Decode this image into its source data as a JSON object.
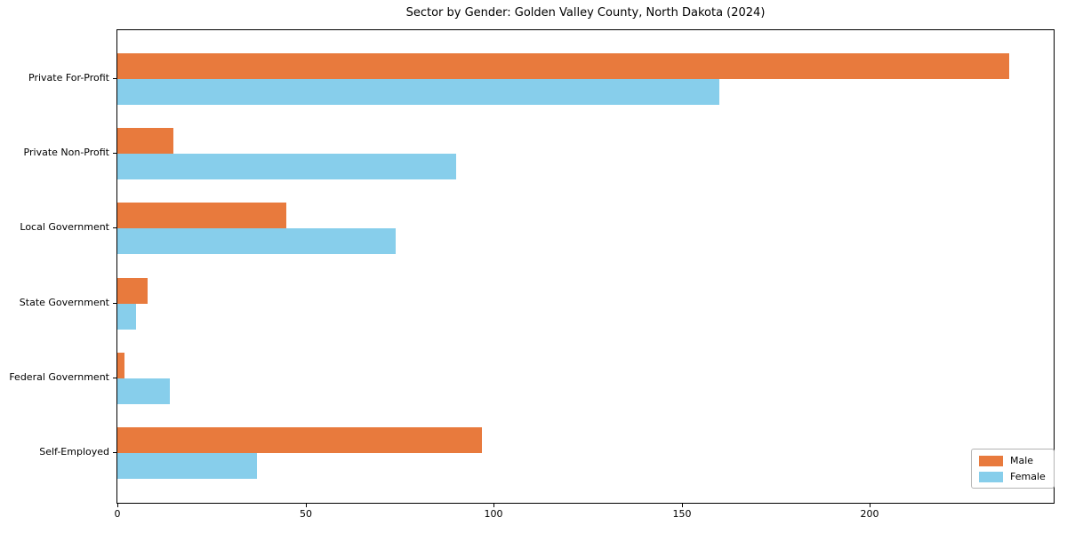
{
  "chart_data": {
    "type": "bar",
    "orientation": "horizontal",
    "title": "Sector by Gender: Golden Valley County, North Dakota (2024)",
    "categories": [
      "Private For-Profit",
      "Private Non-Profit",
      "Local Government",
      "State Government",
      "Federal Government",
      "Self-Employed"
    ],
    "series": [
      {
        "name": "Male",
        "color": "#e87a3d",
        "values": [
          237,
          15,
          45,
          8,
          2,
          97
        ]
      },
      {
        "name": "Female",
        "color": "#87ceeb",
        "values": [
          160,
          90,
          74,
          5,
          14,
          37
        ]
      }
    ],
    "xlabel": "",
    "ylabel": "",
    "xlim": [
      0,
      248.85
    ],
    "xticks": [
      0,
      50,
      100,
      150,
      200
    ],
    "grid": false,
    "legend_position": "lower right",
    "background_color": "#ffffff",
    "axis_color": "#000000"
  }
}
